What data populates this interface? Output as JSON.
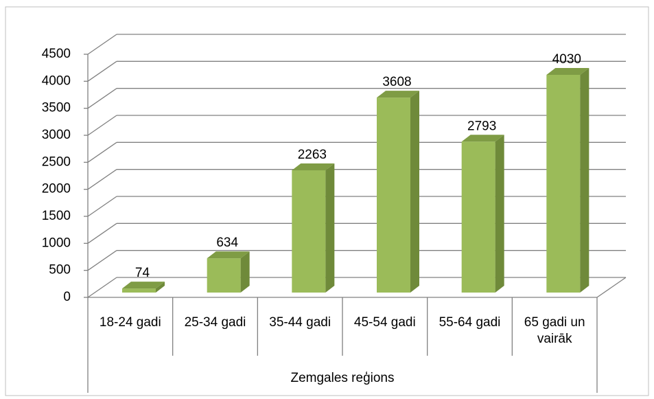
{
  "chart_data": {
    "type": "bar3d",
    "categories": [
      "18-24 gadi",
      "25-34 gadi",
      "35-44 gadi",
      "45-54 gadi",
      "55-64 gadi",
      "65 gadi un vairāk"
    ],
    "values": [
      74,
      634,
      2263,
      3608,
      2793,
      4030
    ],
    "group_label": "Zemgales reģions",
    "color": "#9bbb59",
    "ylim": [
      0,
      4500
    ],
    "yticks": [
      0,
      500,
      1000,
      1500,
      2000,
      2500,
      3000,
      3500,
      4000,
      4500
    ],
    "grid": true
  }
}
